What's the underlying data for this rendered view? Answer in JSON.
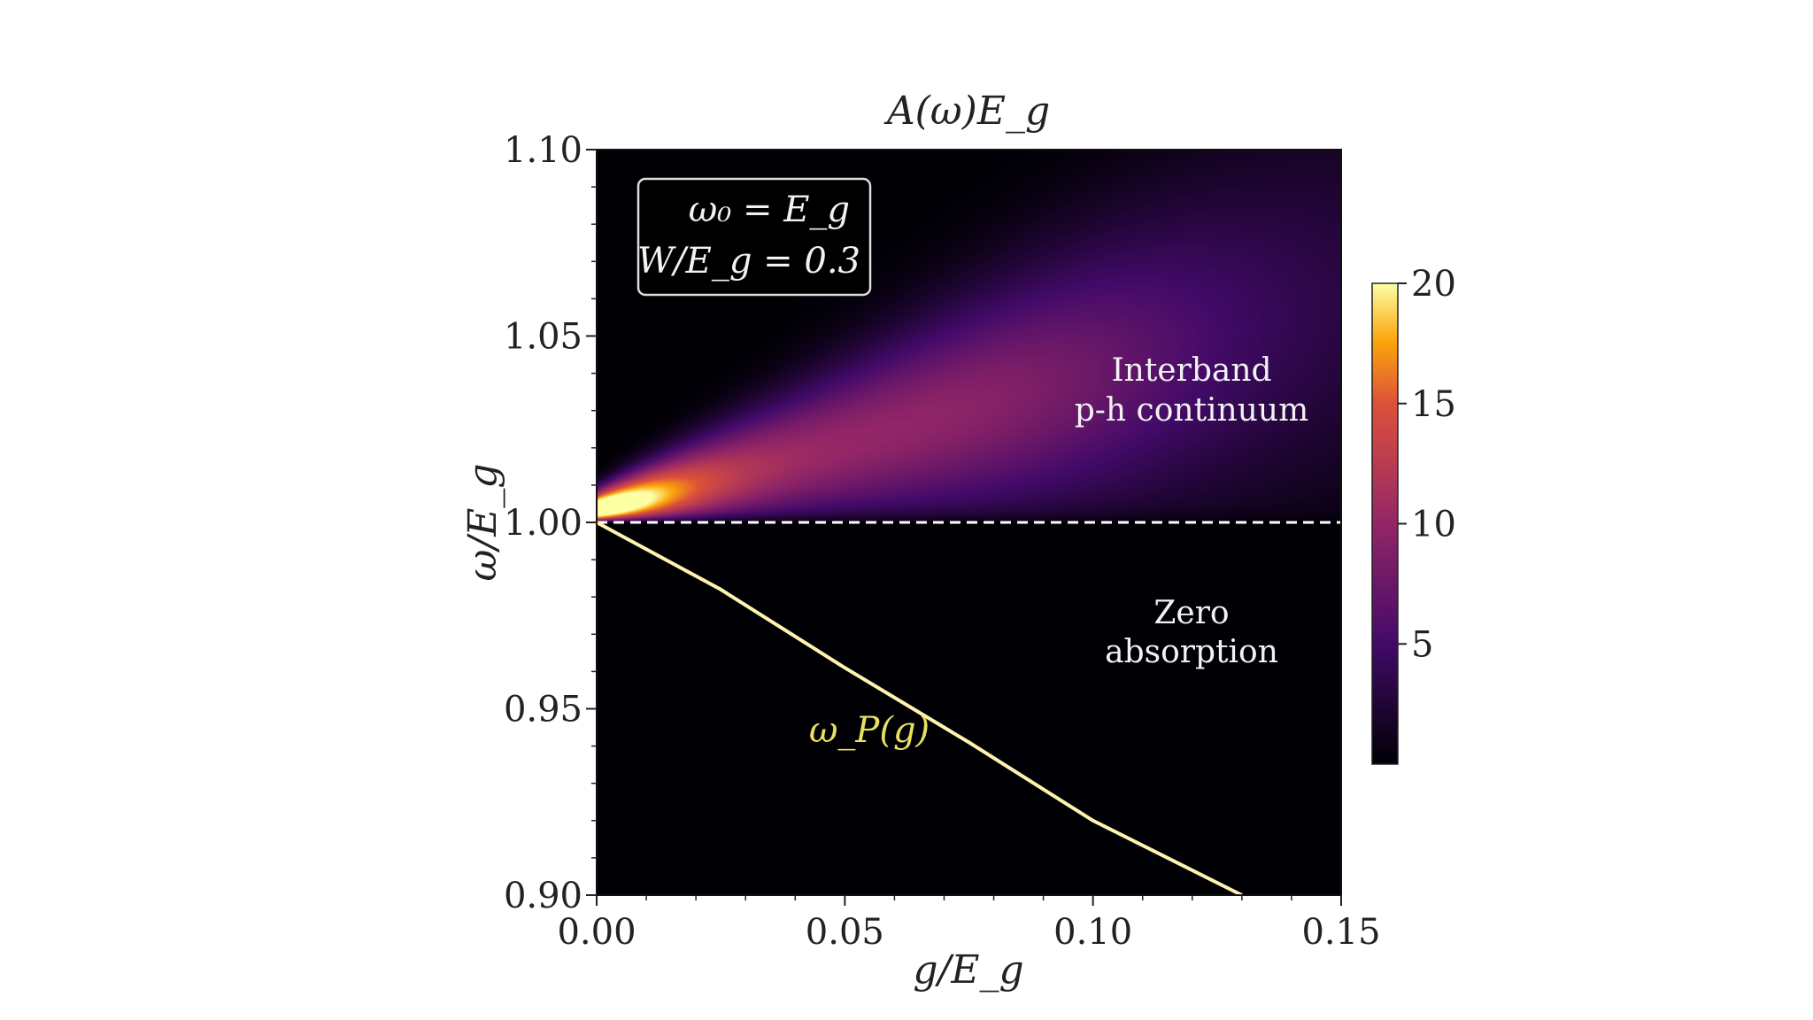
{
  "chart_data": {
    "type": "heatmap",
    "title": "A(ω)E_g",
    "xlabel": "g/E_g",
    "ylabel": "ω/E_g",
    "xlim": [
      0.0,
      0.15
    ],
    "ylim": [
      0.9,
      1.1
    ],
    "xticks": [
      "0.00",
      "0.05",
      "0.10",
      "0.15"
    ],
    "yticks": [
      "0.90",
      "0.95",
      "1.00",
      "1.05",
      "1.10"
    ],
    "colormap": "inferno",
    "colorbar": {
      "range": [
        0,
        20
      ],
      "ticks": [
        "5",
        "10",
        "15",
        "20"
      ]
    },
    "param_box": {
      "line1": "ω₀ = E_g",
      "line2": "W/E_g = 0.3"
    },
    "annotations": {
      "continuum": [
        "Interband",
        "p-h continuum"
      ],
      "zero": [
        "Zero",
        "absorption"
      ],
      "polariton": "ω_P(g)"
    },
    "reference_line": {
      "y": 1.0,
      "style": "dashed",
      "color": "#ffffff"
    },
    "polariton_curve": {
      "g": [
        0.0,
        0.025,
        0.05,
        0.075,
        0.1,
        0.13
      ],
      "omega": [
        1.0,
        0.982,
        0.961,
        0.941,
        0.92,
        0.9
      ]
    },
    "colors": {
      "polariton_label": "#e8e060",
      "annotation": "#f2f2f2"
    }
  }
}
